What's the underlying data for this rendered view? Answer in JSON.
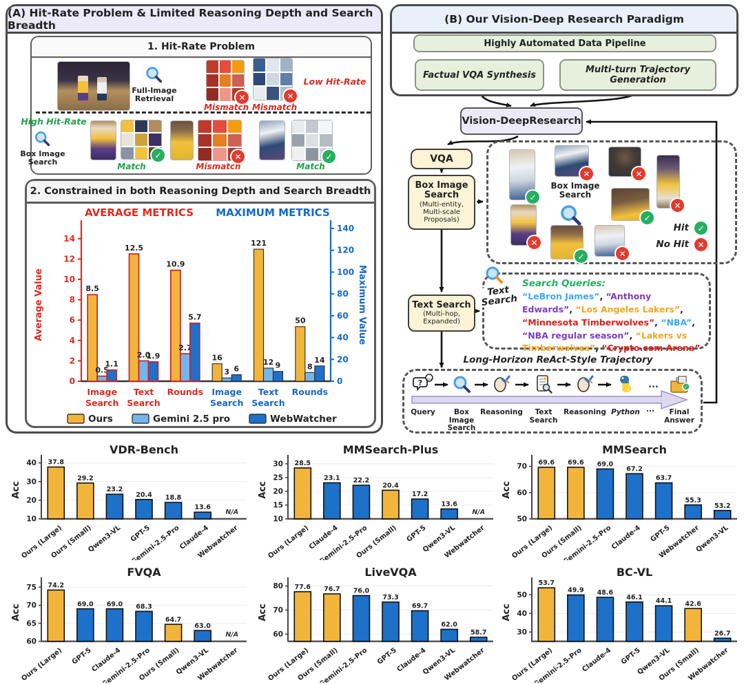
{
  "colors": {
    "ours_yellow": "#F2B53C",
    "baseline_blue": "#1D71C9",
    "gemini_blue": "#74B6EA",
    "avg_red": "#DF2A1F",
    "max_blue": "#1668C8",
    "hit_green": "#27AE60",
    "nohit_red": "#E23B2E"
  },
  "panel_a": {
    "title": "(A) Hit-Rate Problem & Limited Reasoning Depth and Search Breadth",
    "box1": {
      "title": "1. Hit-Rate Problem",
      "full_image_retrieval": "Full-Image Retrieval",
      "low_hit_rate": "Low Hit-Rate",
      "high_hit_rate": "High Hit-Rate",
      "box_image_search": "Box Image Search",
      "row1": [
        {
          "label": "Mismatch",
          "hit": false
        },
        {
          "label": "Mismatch",
          "hit": false
        }
      ],
      "row2": [
        {
          "label": "Match",
          "hit": true
        },
        {
          "label": "Mismatch",
          "hit": false
        },
        {
          "label": "Match",
          "hit": true
        }
      ]
    },
    "box2": {
      "title": "2. Constrained in both Reasoning Depth and Search Breadth"
    }
  },
  "panel_b": {
    "title": "(B) Our Vision-Deep Research Paradigm",
    "pipeline": "Highly Automated Data Pipeline",
    "factual": "Factual VQA Synthesis",
    "multiturn": "Multi-turn Trajectory Generation",
    "vdr": "Vision-DeepResearch",
    "vqa": "VQA",
    "box_search_title": "Box Image Search",
    "box_search_sub": "(Multi-entity, Multi-scale Proposals)",
    "text_search_title": "Text Search",
    "text_search_sub": "(Multi-hop, Expanded)",
    "thumbs_label": "Box Image Search",
    "hit_label": "Hit",
    "no_hit_label": "No Hit",
    "box_results": [
      true,
      false,
      false,
      false,
      true,
      false,
      true,
      false
    ],
    "ts_icon_label": "Text Search",
    "queries_label": "Search Queries:",
    "queries": [
      {
        "text": "“LeBron James”",
        "color": "#3FA9F5"
      },
      {
        "text": "“Anthony Edwards”",
        "color": "#7B3FC4"
      },
      {
        "text": "“Los Angeles Lakers”",
        "color": "#F5A623"
      },
      {
        "text": "“Minnesota Timberwolves”",
        "color": "#E0201B"
      },
      {
        "text": "“NBA”",
        "color": "#3FA9F5"
      },
      {
        "text": "“NBA regular season”",
        "color": "#7B3FC4"
      },
      {
        "text": "“Lakers vs Timberwolves”",
        "color": "#F5A623"
      },
      {
        "text": "“Crypto.com Arena”",
        "color": "#E0201B"
      }
    ],
    "trajectory_title": "Long-Horizon ReAct-Style Trajectory",
    "trajectory_steps": [
      {
        "label": "Query",
        "icon": "query-icon"
      },
      {
        "label": "Box Image Search",
        "icon": "magnifier-icon"
      },
      {
        "label": "Reasoning",
        "icon": "reasoning-icon"
      },
      {
        "label": "Text Search",
        "icon": "doc-search-icon"
      },
      {
        "label": "Reasoning",
        "icon": "reasoning-icon"
      },
      {
        "label": "Python",
        "icon": "python-icon"
      },
      {
        "label": "...",
        "icon": "ellipsis-icon"
      },
      {
        "label": "Final Answer",
        "icon": "final-answer-icon"
      }
    ]
  },
  "chart_data": [
    {
      "type": "bar",
      "id": "metrics",
      "title_left": "AVERAGE METRICS",
      "title_right": "MAXIMUM METRICS",
      "ylabel_left": "Average Value",
      "ylabel_right": "Maximum Value",
      "axis_left": {
        "lim": [
          0,
          15
        ],
        "ticks": [
          0,
          2,
          4,
          6,
          8,
          10,
          12,
          14
        ]
      },
      "axis_right": {
        "lim": [
          0,
          140
        ],
        "ticks": [
          0,
          20,
          40,
          60,
          80,
          100,
          120,
          140
        ]
      },
      "series": [
        "Ours",
        "Gemini 2.5 pro",
        "WebWatcher"
      ],
      "series_colors": [
        "#F2B53C",
        "#74B6EA",
        "#1D71C9"
      ],
      "legend": [
        "Ours",
        "Gemini 2.5 pro",
        "WebWatcher"
      ],
      "groups": [
        {
          "label": "Image Search",
          "axis": "left",
          "values": [
            8.5,
            0.5,
            1.1
          ],
          "labels": [
            "8.5",
            "0.5",
            "1.1"
          ]
        },
        {
          "label": "Text Search",
          "axis": "left",
          "values": [
            12.5,
            2.0,
            1.9
          ],
          "labels": [
            "12.5",
            "2.0",
            "1.9"
          ]
        },
        {
          "label": "Rounds",
          "axis": "left",
          "values": [
            10.9,
            2.7,
            5.7
          ],
          "labels": [
            "10.9",
            "2.7",
            "5.7"
          ]
        },
        {
          "label": "Image Search",
          "axis": "right",
          "values": [
            16,
            3,
            6
          ],
          "labels": [
            "16",
            "3",
            "6"
          ]
        },
        {
          "label": "Text Search",
          "axis": "right",
          "values": [
            121,
            12,
            9
          ],
          "labels": [
            "121",
            "12",
            "9"
          ]
        },
        {
          "label": "Rounds",
          "axis": "right",
          "values": [
            50,
            8,
            14
          ],
          "labels": [
            "50",
            "8",
            "14"
          ]
        }
      ]
    },
    {
      "type": "bar",
      "title": "VDR-Bench",
      "ylabel": "Acc",
      "ymin": 10,
      "ymax": 41,
      "yticks": [
        10,
        20,
        30,
        40
      ],
      "bars": [
        {
          "label": "Ours (Large)",
          "value": 37.8,
          "ours": true
        },
        {
          "label": "Ours (Small)",
          "value": 29.2,
          "ours": true
        },
        {
          "label": "Qwen3-VL",
          "value": 23.2,
          "ours": false
        },
        {
          "label": "GPT-5",
          "value": 20.4,
          "ours": false
        },
        {
          "label": "Gemini-2.5-Pro",
          "value": 18.8,
          "ours": false
        },
        {
          "label": "Claude-4",
          "value": 13.6,
          "ours": false
        },
        {
          "label": "Webwatcher",
          "value": null,
          "na": "N/A"
        }
      ]
    },
    {
      "type": "bar",
      "title": "MMSearch-Plus",
      "ylabel": "Acc",
      "ymin": 10,
      "ymax": 31,
      "yticks": [
        10,
        15,
        20,
        25,
        30
      ],
      "bars": [
        {
          "label": "Ours (Large)",
          "value": 28.5,
          "ours": true
        },
        {
          "label": "Claude-4",
          "value": 23.1,
          "ours": false
        },
        {
          "label": "Gemini-2.5-Pro",
          "value": 22.2,
          "ours": false
        },
        {
          "label": "Ours (Small)",
          "value": 20.4,
          "ours": true
        },
        {
          "label": "GPT-5",
          "value": 17.2,
          "ours": false
        },
        {
          "label": "Qwen3-VL",
          "value": 13.6,
          "ours": false
        },
        {
          "label": "Webwatcher",
          "value": null,
          "na": "N/A"
        }
      ]
    },
    {
      "type": "bar",
      "title": "MMSearch",
      "ylabel": "Acc",
      "ymin": 50,
      "ymax": 72,
      "yticks": [
        50,
        60,
        70
      ],
      "bars": [
        {
          "label": "Ours (Large)",
          "value": 69.6,
          "ours": true
        },
        {
          "label": "Ours (Small)",
          "value": 69.6,
          "ours": true
        },
        {
          "label": "Gemini-2.5-Pro",
          "value": 69.0,
          "ours": false
        },
        {
          "label": "Claude-4",
          "value": 67.2,
          "ours": false
        },
        {
          "label": "GPT-5",
          "value": 63.7,
          "ours": false
        },
        {
          "label": "Webwatcher",
          "value": 55.3,
          "ours": false
        },
        {
          "label": "Qwen3-VL",
          "value": 53.2,
          "ours": false
        }
      ]
    },
    {
      "type": "bar",
      "title": "FVQA",
      "ylabel": "Acc",
      "ymin": 60,
      "ymax": 76,
      "yticks": [
        60,
        65,
        70,
        75
      ],
      "bars": [
        {
          "label": "Ours (Large)",
          "value": 74.2,
          "ours": true
        },
        {
          "label": "GPT-5",
          "value": 69.0,
          "ours": false
        },
        {
          "label": "Claude-4",
          "value": 69.0,
          "ours": false
        },
        {
          "label": "Gemini-2.5-Pro",
          "value": 68.3,
          "ours": false
        },
        {
          "label": "Ours (Small)",
          "value": 64.7,
          "ours": true
        },
        {
          "label": "Qwen3-VL",
          "value": 63.0,
          "ours": false
        },
        {
          "label": "Webwatcher",
          "value": null,
          "na": "N/A"
        }
      ]
    },
    {
      "type": "bar",
      "title": "LiveVQA",
      "ylabel": "Acc",
      "ymin": 57,
      "ymax": 81,
      "yticks": [
        60,
        70,
        80
      ],
      "bars": [
        {
          "label": "Ours (Large)",
          "value": 77.6,
          "ours": true
        },
        {
          "label": "Ours (Small)",
          "value": 76.7,
          "ours": true
        },
        {
          "label": "Gemini-2.5-Pro",
          "value": 76.0,
          "ours": false
        },
        {
          "label": "GPT-5",
          "value": 73.3,
          "ours": false
        },
        {
          "label": "Claude-4",
          "value": 69.7,
          "ours": false
        },
        {
          "label": "Qwen3-VL",
          "value": 62.0,
          "ours": false
        },
        {
          "label": "Webwatcher",
          "value": 58.7,
          "ours": false
        }
      ]
    },
    {
      "type": "bar",
      "title": "BC-VL",
      "ylabel": "Acc",
      "ymin": 25,
      "ymax": 56,
      "yticks": [
        30,
        40,
        50
      ],
      "bars": [
        {
          "label": "Ours (Large)",
          "value": 53.7,
          "ours": true
        },
        {
          "label": "Gemini-2.5-Pro",
          "value": 49.9,
          "ours": false
        },
        {
          "label": "Claude-4",
          "value": 48.6,
          "ours": false
        },
        {
          "label": "GPT-5",
          "value": 46.1,
          "ours": false
        },
        {
          "label": "Qwen3-VL",
          "value": 44.1,
          "ours": false
        },
        {
          "label": "Ours (Small)",
          "value": 42.6,
          "ours": true
        },
        {
          "label": "Webwatcher",
          "value": 26.7,
          "ours": false
        }
      ]
    }
  ]
}
